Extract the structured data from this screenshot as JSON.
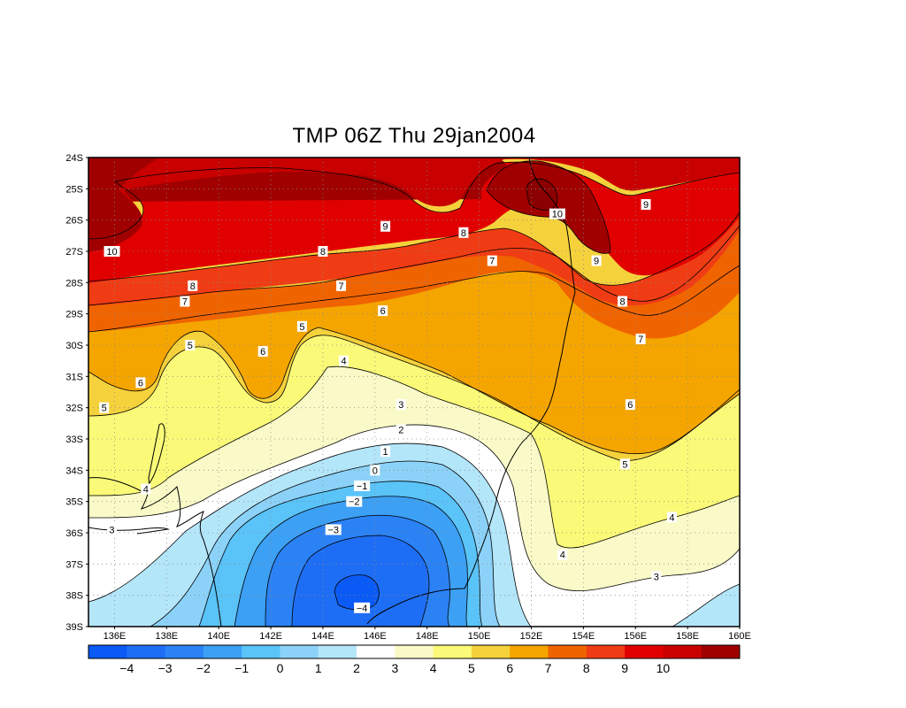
{
  "title": "TMP 06Z Thu 29jan2004",
  "lat_labels": [
    "24S",
    "25S",
    "26S",
    "27S",
    "28S",
    "29S",
    "30S",
    "31S",
    "32S",
    "33S",
    "34S",
    "35S",
    "36S",
    "37S",
    "38S",
    "39S"
  ],
  "lon_labels": [
    "136E",
    "138E",
    "140E",
    "142E",
    "144E",
    "146E",
    "148E",
    "150E",
    "152E",
    "154E",
    "156E",
    "158E",
    "160E"
  ],
  "colorbar": {
    "colors": [
      "#0a5af5",
      "#1e6ef5",
      "#2b82f5",
      "#3ca0f5",
      "#5ac3f8",
      "#8cd2f8",
      "#b4e6fa",
      "#ffffff",
      "#fafac8",
      "#fafa78",
      "#f5d23c",
      "#f5a500",
      "#f06400",
      "#f03c14",
      "#e10000",
      "#c80000",
      "#a00000"
    ],
    "labels": [
      "−4",
      "−3",
      "−2",
      "−1",
      "0",
      "1",
      "2",
      "3",
      "4",
      "5",
      "6",
      "7",
      "8",
      "9",
      "10"
    ]
  },
  "contour_labels": [
    {
      "text": "10",
      "lon": 135.9,
      "lat": 27.0
    },
    {
      "text": "9",
      "lon": 146.4,
      "lat": 26.2
    },
    {
      "text": "10",
      "lon": 153.0,
      "lat": 25.8
    },
    {
      "text": "9",
      "lon": 156.4,
      "lat": 25.5
    },
    {
      "text": "8",
      "lon": 144.0,
      "lat": 27.0
    },
    {
      "text": "8",
      "lon": 149.4,
      "lat": 26.4
    },
    {
      "text": "9",
      "lon": 154.5,
      "lat": 27.3
    },
    {
      "text": "7",
      "lon": 150.5,
      "lat": 27.3
    },
    {
      "text": "8",
      "lon": 139.0,
      "lat": 28.1
    },
    {
      "text": "7",
      "lon": 144.7,
      "lat": 28.1
    },
    {
      "text": "7",
      "lon": 138.7,
      "lat": 28.6
    },
    {
      "text": "8",
      "lon": 155.5,
      "lat": 28.6
    },
    {
      "text": "6",
      "lon": 146.3,
      "lat": 28.9
    },
    {
      "text": "5",
      "lon": 143.2,
      "lat": 29.4
    },
    {
      "text": "5",
      "lon": 138.9,
      "lat": 30.0
    },
    {
      "text": "6",
      "lon": 141.7,
      "lat": 30.2
    },
    {
      "text": "7",
      "lon": 156.2,
      "lat": 29.8
    },
    {
      "text": "4",
      "lon": 144.8,
      "lat": 30.5
    },
    {
      "text": "6",
      "lon": 137.0,
      "lat": 31.2
    },
    {
      "text": "5",
      "lon": 135.6,
      "lat": 32.0
    },
    {
      "text": "3",
      "lon": 147.0,
      "lat": 31.9
    },
    {
      "text": "6",
      "lon": 155.8,
      "lat": 31.9
    },
    {
      "text": "2",
      "lon": 147.0,
      "lat": 32.7
    },
    {
      "text": "1",
      "lon": 146.4,
      "lat": 33.4
    },
    {
      "text": "0",
      "lon": 146.0,
      "lat": 34.0
    },
    {
      "text": "5",
      "lon": 155.6,
      "lat": 33.8
    },
    {
      "text": "−1",
      "lon": 145.5,
      "lat": 34.5
    },
    {
      "text": "4",
      "lon": 137.2,
      "lat": 34.6
    },
    {
      "text": "−2",
      "lon": 145.2,
      "lat": 35.0
    },
    {
      "text": "4",
      "lon": 157.4,
      "lat": 35.5
    },
    {
      "text": "3",
      "lon": 135.9,
      "lat": 35.9
    },
    {
      "text": "−3",
      "lon": 144.4,
      "lat": 35.9
    },
    {
      "text": "4",
      "lon": 153.2,
      "lat": 36.7
    },
    {
      "text": "3",
      "lon": 156.8,
      "lat": 37.4
    },
    {
      "text": "−4",
      "lon": 145.5,
      "lat": 38.4
    }
  ]
}
